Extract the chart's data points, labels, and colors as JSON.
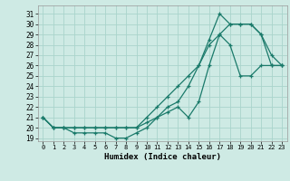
{
  "xlabel": "Humidex (Indice chaleur)",
  "xlim": [
    -0.5,
    23.5
  ],
  "ylim": [
    18.7,
    31.8
  ],
  "yticks": [
    19,
    20,
    21,
    22,
    23,
    24,
    25,
    26,
    27,
    28,
    29,
    30,
    31
  ],
  "xticks": [
    0,
    1,
    2,
    3,
    4,
    5,
    6,
    7,
    8,
    9,
    10,
    11,
    12,
    13,
    14,
    15,
    16,
    17,
    18,
    19,
    20,
    21,
    22,
    23
  ],
  "bg_color": "#ceeae4",
  "grid_color": "#aad4cc",
  "line_color": "#1a7a6a",
  "line1_x": [
    0,
    1,
    2,
    3,
    4,
    5,
    6,
    7,
    8,
    9,
    10,
    11,
    12,
    13,
    14,
    15,
    16,
    17,
    18,
    19,
    20,
    21,
    22,
    23
  ],
  "line1_y": [
    21,
    20,
    20,
    19.5,
    19.5,
    19.5,
    19.5,
    19,
    19,
    19.5,
    20,
    21,
    22,
    22.5,
    24,
    26,
    28.5,
    31,
    30,
    30,
    30,
    29,
    27,
    26
  ],
  "line2_x": [
    0,
    1,
    2,
    3,
    4,
    5,
    6,
    7,
    8,
    9,
    10,
    11,
    12,
    13,
    14,
    15,
    16,
    17,
    18,
    19,
    20,
    21,
    22,
    23
  ],
  "line2_y": [
    21,
    20,
    20,
    20,
    20,
    20,
    20,
    20,
    20,
    20,
    21,
    22,
    23,
    24,
    25,
    26,
    28,
    29,
    30,
    30,
    30,
    29,
    26,
    26
  ],
  "line3_x": [
    0,
    1,
    2,
    3,
    4,
    5,
    6,
    7,
    8,
    9,
    10,
    11,
    12,
    13,
    14,
    15,
    16,
    17,
    18,
    19,
    20,
    21,
    22,
    23
  ],
  "line3_y": [
    21,
    20,
    20,
    20,
    20,
    20,
    20,
    20,
    20,
    20,
    20.5,
    21,
    21.5,
    22,
    21,
    22.5,
    26,
    29,
    28,
    25,
    25,
    26,
    26,
    26
  ]
}
